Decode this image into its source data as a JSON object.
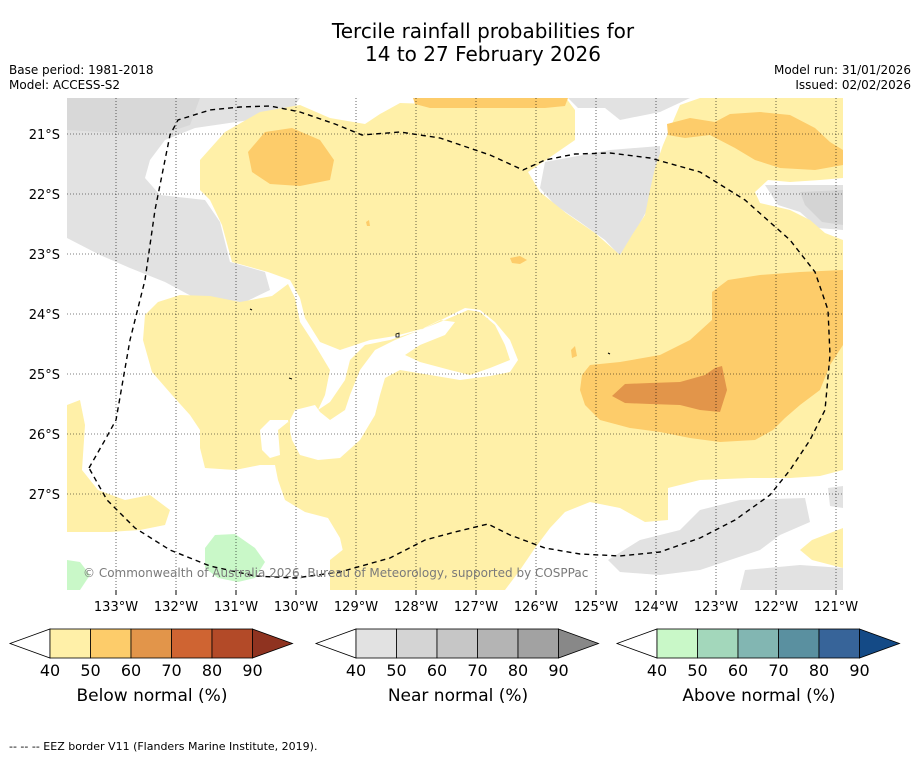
{
  "title": {
    "line1": "Tercile rainfall probabilities for",
    "line2": "14 to 27 February 2026"
  },
  "meta": {
    "base_period": "Base period: 1981-2018",
    "model": "Model: ACCESS-S2",
    "model_run": "Model run: 31/01/2026",
    "issued": "Issued: 02/02/2026"
  },
  "map": {
    "lat_labels": [
      "21°S",
      "22°S",
      "23°S",
      "24°S",
      "25°S",
      "26°S",
      "27°S"
    ],
    "lon_labels": [
      "133°W",
      "132°W",
      "131°W",
      "130°W",
      "129°W",
      "128°W",
      "127°W",
      "126°W",
      "125°W",
      "124°W",
      "123°W",
      "122°W",
      "121°W"
    ],
    "copyright": "© Commonwealth of Australia 2026, Bureau of Meteorology, supported by COSPPac",
    "boundary": "EEZ border"
  },
  "legends": [
    {
      "title": "Below normal (%)",
      "ticks": [
        "40",
        "50",
        "60",
        "70",
        "80",
        "90"
      ],
      "colors": [
        "#fff0a8",
        "#fdcc6a",
        "#e2954a",
        "#cf6432",
        "#b34a28",
        "#8f3320"
      ]
    },
    {
      "title": "Near normal (%)",
      "ticks": [
        "40",
        "50",
        "60",
        "70",
        "80",
        "90"
      ],
      "colors": [
        "#e2e2e2",
        "#d4d4d4",
        "#c6c6c6",
        "#b4b4b4",
        "#a2a2a2",
        "#888888"
      ]
    },
    {
      "title": "Above normal (%)",
      "ticks": [
        "40",
        "50",
        "60",
        "70",
        "80",
        "90"
      ],
      "colors": [
        "#c9f8c8",
        "#a3d7bb",
        "#82b6b2",
        "#5a90a0",
        "#376499",
        "#144a86"
      ]
    }
  ],
  "footer": "--  --  -- EEZ border V11 (Flanders Marine Institute, 2019)."
}
